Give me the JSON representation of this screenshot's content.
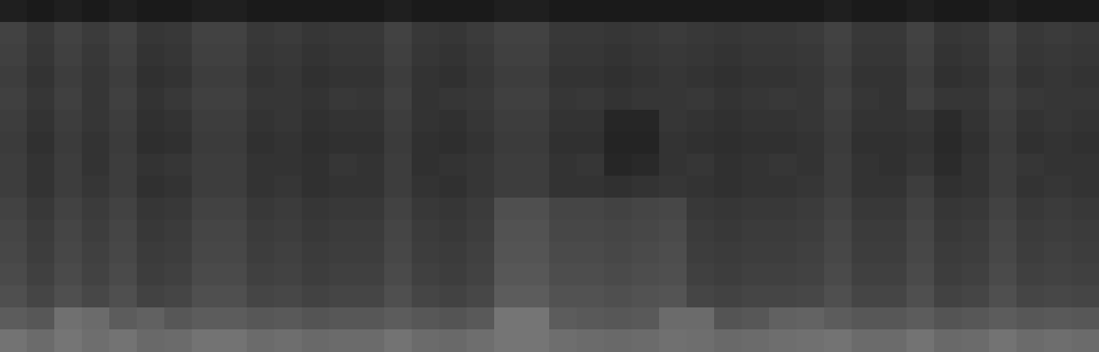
{
  "chart_data": {
    "type": "heatmap",
    "tick_labels": false,
    "zlim": [
      0,
      100
    ],
    "cells": [
      [
        12,
        10,
        12,
        10,
        12,
        10,
        10,
        12,
        12,
        10,
        10,
        10,
        10,
        10,
        12,
        10,
        10,
        10,
        12,
        12,
        10,
        10,
        10,
        10,
        10,
        10,
        10,
        10,
        10,
        10,
        12,
        10,
        10,
        12,
        10,
        10,
        12,
        10,
        10,
        10
      ],
      [
        26,
        22,
        26,
        23,
        26,
        21,
        22,
        26,
        26,
        22,
        23,
        21,
        22,
        22,
        26,
        22,
        21,
        23,
        26,
        26,
        22,
        22,
        21,
        22,
        23,
        22,
        21,
        22,
        22,
        23,
        26,
        22,
        22,
        26,
        21,
        22,
        26,
        22,
        23,
        22
      ],
      [
        25,
        21,
        25,
        22,
        25,
        20,
        21,
        25,
        25,
        21,
        22,
        20,
        21,
        21,
        25,
        21,
        20,
        22,
        25,
        25,
        21,
        21,
        20,
        21,
        22,
        21,
        20,
        21,
        21,
        22,
        25,
        21,
        21,
        25,
        20,
        21,
        25,
        21,
        22,
        21
      ],
      [
        24,
        20,
        24,
        21,
        24,
        19,
        20,
        24,
        24,
        20,
        21,
        19,
        20,
        20,
        24,
        20,
        19,
        21,
        24,
        24,
        20,
        20,
        19,
        20,
        21,
        20,
        19,
        20,
        20,
        21,
        24,
        20,
        20,
        24,
        19,
        20,
        24,
        20,
        21,
        20
      ],
      [
        25,
        21,
        25,
        21,
        25,
        20,
        22,
        25,
        25,
        21,
        21,
        20,
        22,
        21,
        25,
        20,
        21,
        22,
        25,
        25,
        21,
        22,
        20,
        21,
        21,
        22,
        20,
        21,
        22,
        21,
        25,
        21,
        20,
        25,
        21,
        21,
        25,
        22,
        21,
        21
      ],
      [
        24,
        20,
        24,
        21,
        24,
        19,
        20,
        24,
        24,
        20,
        21,
        19,
        20,
        20,
        24,
        20,
        19,
        21,
        24,
        24,
        20,
        20,
        15,
        15,
        21,
        20,
        19,
        20,
        20,
        21,
        24,
        20,
        20,
        21,
        17,
        20,
        24,
        20,
        21,
        20
      ],
      [
        23,
        19,
        23,
        20,
        23,
        18,
        19,
        23,
        23,
        19,
        20,
        18,
        19,
        19,
        23,
        19,
        18,
        20,
        23,
        23,
        19,
        19,
        14,
        14,
        20,
        19,
        18,
        19,
        19,
        20,
        23,
        19,
        19,
        20,
        16,
        19,
        23,
        19,
        20,
        19
      ],
      [
        24,
        20,
        24,
        20,
        24,
        20,
        21,
        24,
        24,
        20,
        20,
        19,
        21,
        20,
        24,
        19,
        20,
        21,
        24,
        24,
        20,
        21,
        15,
        16,
        20,
        21,
        19,
        20,
        21,
        20,
        24,
        20,
        19,
        21,
        17,
        20,
        24,
        21,
        20,
        20
      ],
      [
        24,
        20,
        24,
        21,
        24,
        19,
        20,
        24,
        24,
        20,
        21,
        19,
        20,
        20,
        24,
        20,
        19,
        21,
        24,
        24,
        20,
        20,
        19,
        20,
        21,
        20,
        19,
        20,
        20,
        21,
        24,
        20,
        20,
        24,
        19,
        20,
        24,
        20,
        21,
        20
      ],
      [
        26,
        22,
        26,
        23,
        26,
        21,
        22,
        26,
        26,
        22,
        23,
        21,
        22,
        22,
        26,
        22,
        21,
        23,
        31,
        31,
        27,
        27,
        26,
        27,
        28,
        22,
        21,
        22,
        22,
        23,
        26,
        22,
        22,
        26,
        21,
        22,
        26,
        22,
        23,
        22
      ],
      [
        27,
        23,
        27,
        24,
        27,
        22,
        23,
        27,
        27,
        23,
        24,
        22,
        23,
        23,
        27,
        23,
        22,
        24,
        32,
        32,
        28,
        28,
        27,
        28,
        29,
        23,
        22,
        23,
        23,
        24,
        27,
        23,
        23,
        27,
        22,
        23,
        27,
        23,
        24,
        23
      ],
      [
        28,
        24,
        28,
        25,
        28,
        23,
        24,
        28,
        28,
        24,
        25,
        23,
        24,
        24,
        28,
        24,
        23,
        25,
        33,
        33,
        29,
        29,
        28,
        29,
        30,
        24,
        23,
        24,
        24,
        25,
        28,
        24,
        24,
        28,
        23,
        24,
        28,
        24,
        25,
        24
      ],
      [
        29,
        25,
        29,
        26,
        29,
        24,
        25,
        29,
        29,
        25,
        26,
        24,
        25,
        25,
        29,
        25,
        24,
        26,
        34,
        34,
        30,
        30,
        29,
        30,
        31,
        25,
        24,
        25,
        25,
        26,
        29,
        25,
        25,
        29,
        24,
        25,
        29,
        25,
        26,
        25
      ],
      [
        31,
        27,
        31,
        28,
        31,
        26,
        27,
        31,
        31,
        27,
        28,
        26,
        27,
        27,
        31,
        27,
        26,
        28,
        36,
        36,
        32,
        32,
        31,
        32,
        33,
        27,
        26,
        27,
        27,
        28,
        31,
        27,
        27,
        31,
        26,
        27,
        31,
        27,
        28,
        27
      ],
      [
        36,
        34,
        44,
        42,
        36,
        38,
        34,
        36,
        36,
        34,
        35,
        33,
        34,
        34,
        36,
        34,
        33,
        35,
        46,
        46,
        36,
        35,
        34,
        35,
        42,
        42,
        33,
        34,
        38,
        39,
        36,
        34,
        34,
        36,
        33,
        34,
        36,
        34,
        35,
        34
      ],
      [
        45,
        42,
        46,
        43,
        45,
        41,
        42,
        45,
        45,
        42,
        43,
        41,
        42,
        42,
        45,
        42,
        41,
        43,
        46,
        46,
        43,
        42,
        41,
        42,
        44,
        43,
        41,
        42,
        43,
        44,
        45,
        42,
        42,
        45,
        41,
        42,
        45,
        42,
        43,
        42
      ]
    ]
  }
}
